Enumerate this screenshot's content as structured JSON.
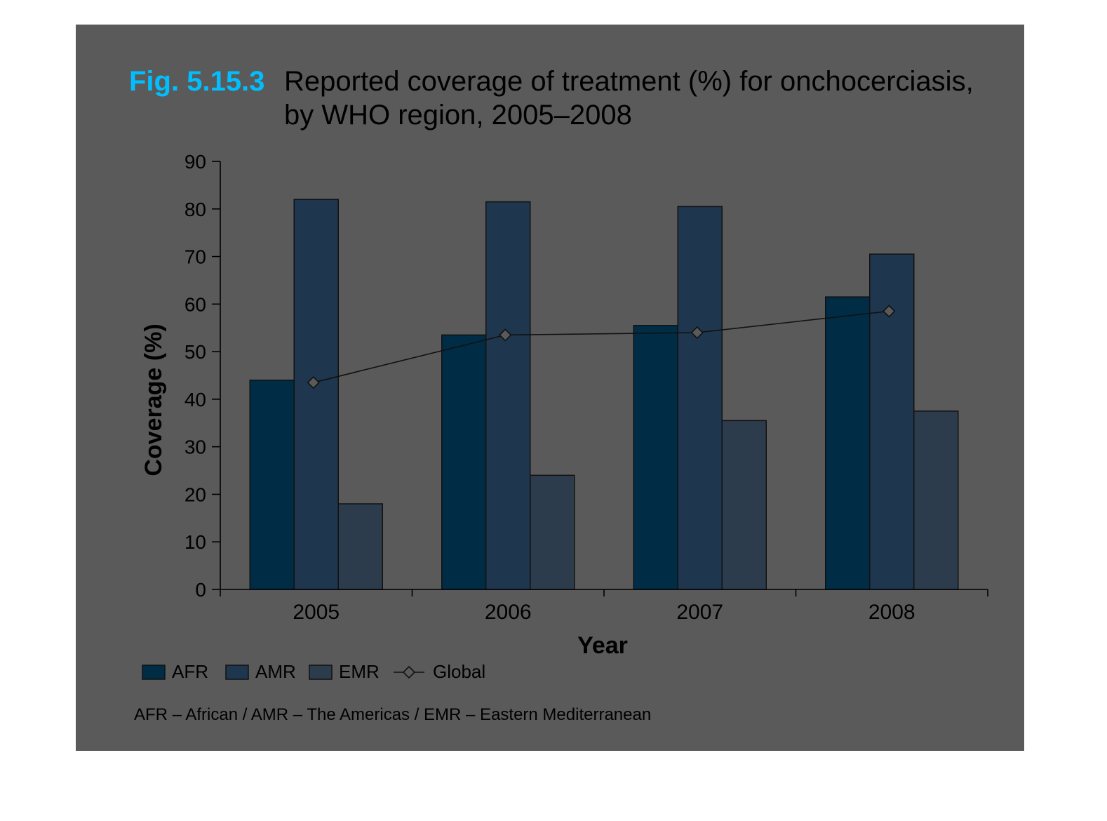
{
  "figure": {
    "label": "Fig. 5.15.3",
    "title_line1": "Reported coverage of treatment (%) for onchocerciasis,",
    "title_line2": "by WHO region, 2005–2008",
    "footnote": "AFR – African / AMR – The Americas / EMR – Eastern Mediterranean"
  },
  "colors": {
    "panel": "#5a5a5a",
    "label_accent": "#00bfff",
    "title_text": "#000000"
  },
  "chart_data": {
    "type": "bar",
    "categories": [
      "2005",
      "2006",
      "2007",
      "2008"
    ],
    "series": [
      {
        "name": "AFR",
        "values": [
          44,
          53.5,
          55.5,
          61.5
        ],
        "color": "#002c45"
      },
      {
        "name": "AMR",
        "values": [
          82,
          81.5,
          80.5,
          70.5
        ],
        "color": "#1f364f"
      },
      {
        "name": "EMR",
        "values": [
          18,
          24,
          35.5,
          37.5
        ],
        "color": "#2d3c4d"
      }
    ],
    "line_series": {
      "name": "Global",
      "values": [
        43.5,
        53.5,
        54,
        58.5
      ],
      "marker": "diamond"
    },
    "xlabel": "Year",
    "ylabel": "Coverage (%)",
    "ylim": [
      0,
      90
    ],
    "yticks": [
      0,
      10,
      20,
      30,
      40,
      50,
      60,
      70,
      80,
      90
    ],
    "legend": {
      "position": "bottom-left",
      "items": [
        "AFR",
        "AMR",
        "EMR",
        "Global"
      ]
    },
    "grid": false
  }
}
